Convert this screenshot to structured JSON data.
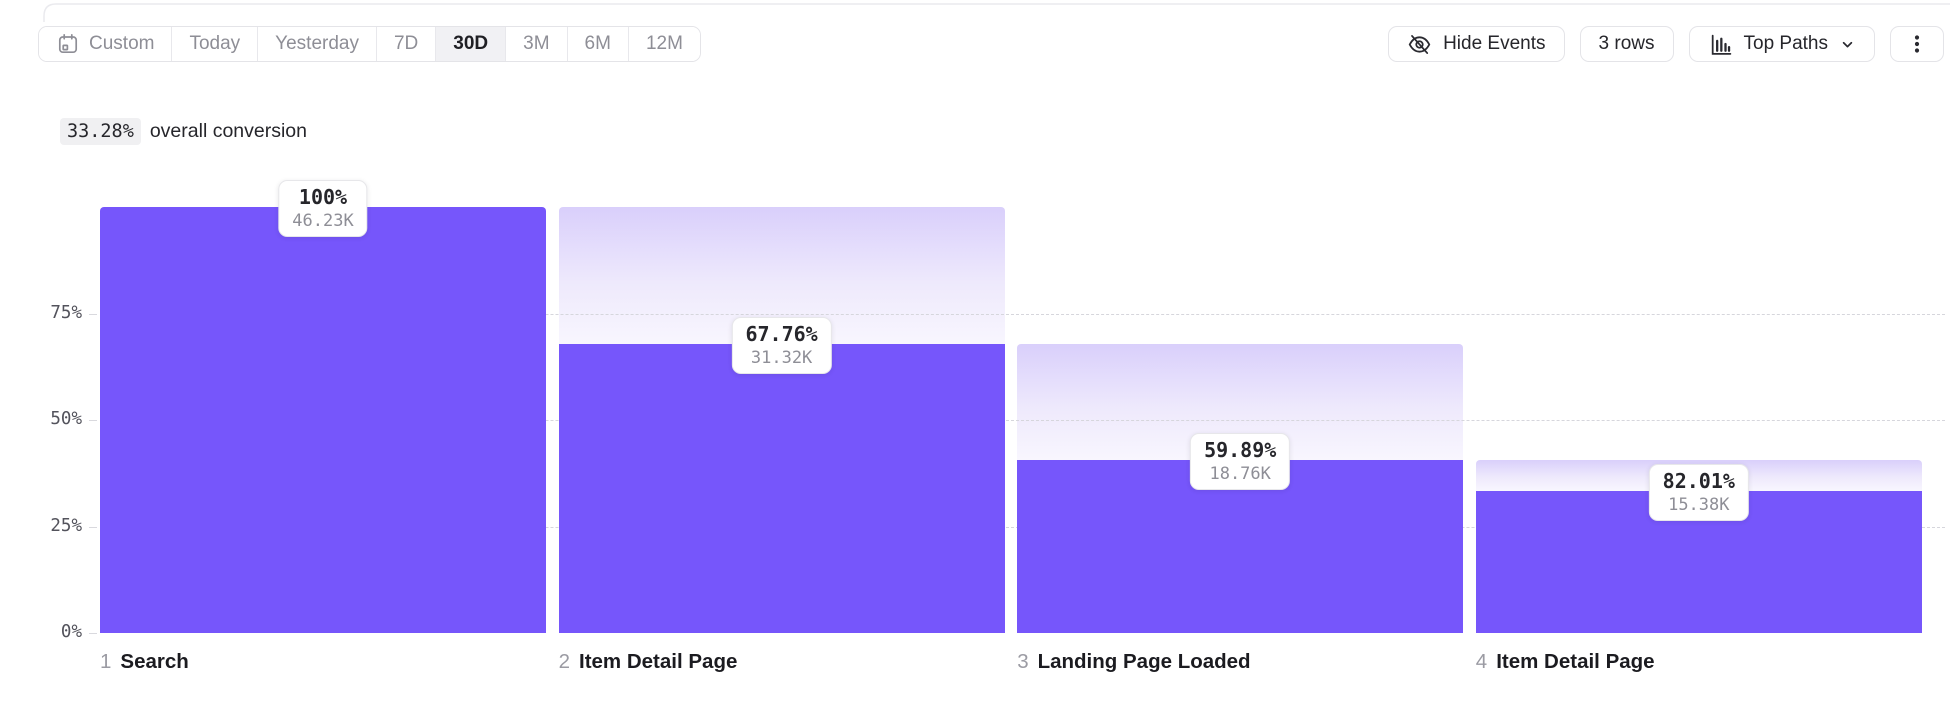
{
  "toolbar": {
    "date_ranges": {
      "items": [
        {
          "label": "Custom",
          "icon": "calendar-icon",
          "selected": false
        },
        {
          "label": "Today",
          "selected": false
        },
        {
          "label": "Yesterday",
          "selected": false
        },
        {
          "label": "7D",
          "selected": false
        },
        {
          "label": "30D",
          "selected": true
        },
        {
          "label": "3M",
          "selected": false
        },
        {
          "label": "6M",
          "selected": false
        },
        {
          "label": "12M",
          "selected": false
        }
      ],
      "selected_value": "30D"
    },
    "hide_events_label": "Hide Events",
    "rows_label": "3 rows",
    "top_paths_label": "Top Paths",
    "icons": {
      "hide_events": "eye-off-icon",
      "top_paths": "bar-chart-icon",
      "top_paths_caret": "chevron-down-icon",
      "more": "kebab-menu-icon",
      "custom_range": "calendar-icon"
    }
  },
  "summary": {
    "value": "33.28%",
    "label": "overall conversion"
  },
  "chart_data": {
    "type": "bar",
    "subtype": "funnel",
    "title": "33.28% overall conversion",
    "categories": [
      "Search",
      "Item Detail Page",
      "Landing Page Loaded",
      "Item Detail Page"
    ],
    "steps": [
      {
        "index": "1",
        "name": "Search",
        "conversion_pct": "100%",
        "count": "46.23K",
        "cumulative_pct": 100,
        "prev_cumulative_pct": 100
      },
      {
        "index": "2",
        "name": "Item Detail Page",
        "conversion_pct": "67.76%",
        "count": "31.32K",
        "cumulative_pct": 67.75,
        "prev_cumulative_pct": 100
      },
      {
        "index": "3",
        "name": "Landing Page Loaded",
        "conversion_pct": "59.89%",
        "count": "18.76K",
        "cumulative_pct": 40.58,
        "prev_cumulative_pct": 67.75
      },
      {
        "index": "4",
        "name": "Item Detail Page",
        "conversion_pct": "82.01%",
        "count": "15.38K",
        "cumulative_pct": 33.27,
        "prev_cumulative_pct": 40.58
      }
    ],
    "y_ticks": [
      {
        "label": "75%",
        "value": 75
      },
      {
        "label": "50%",
        "value": 50
      },
      {
        "label": "25%",
        "value": 25
      },
      {
        "label": "0%",
        "value": 0
      }
    ],
    "ylim": [
      0,
      100
    ],
    "grid": "horizontal dashed at 25/50/75",
    "legend": "none",
    "colors": {
      "bar_solid": "#7656fb",
      "dropoff_gradient_top": "#d9cffb",
      "dropoff_gradient_bottom": "#f8f6fe",
      "gridline": "#d6d6dc"
    }
  }
}
